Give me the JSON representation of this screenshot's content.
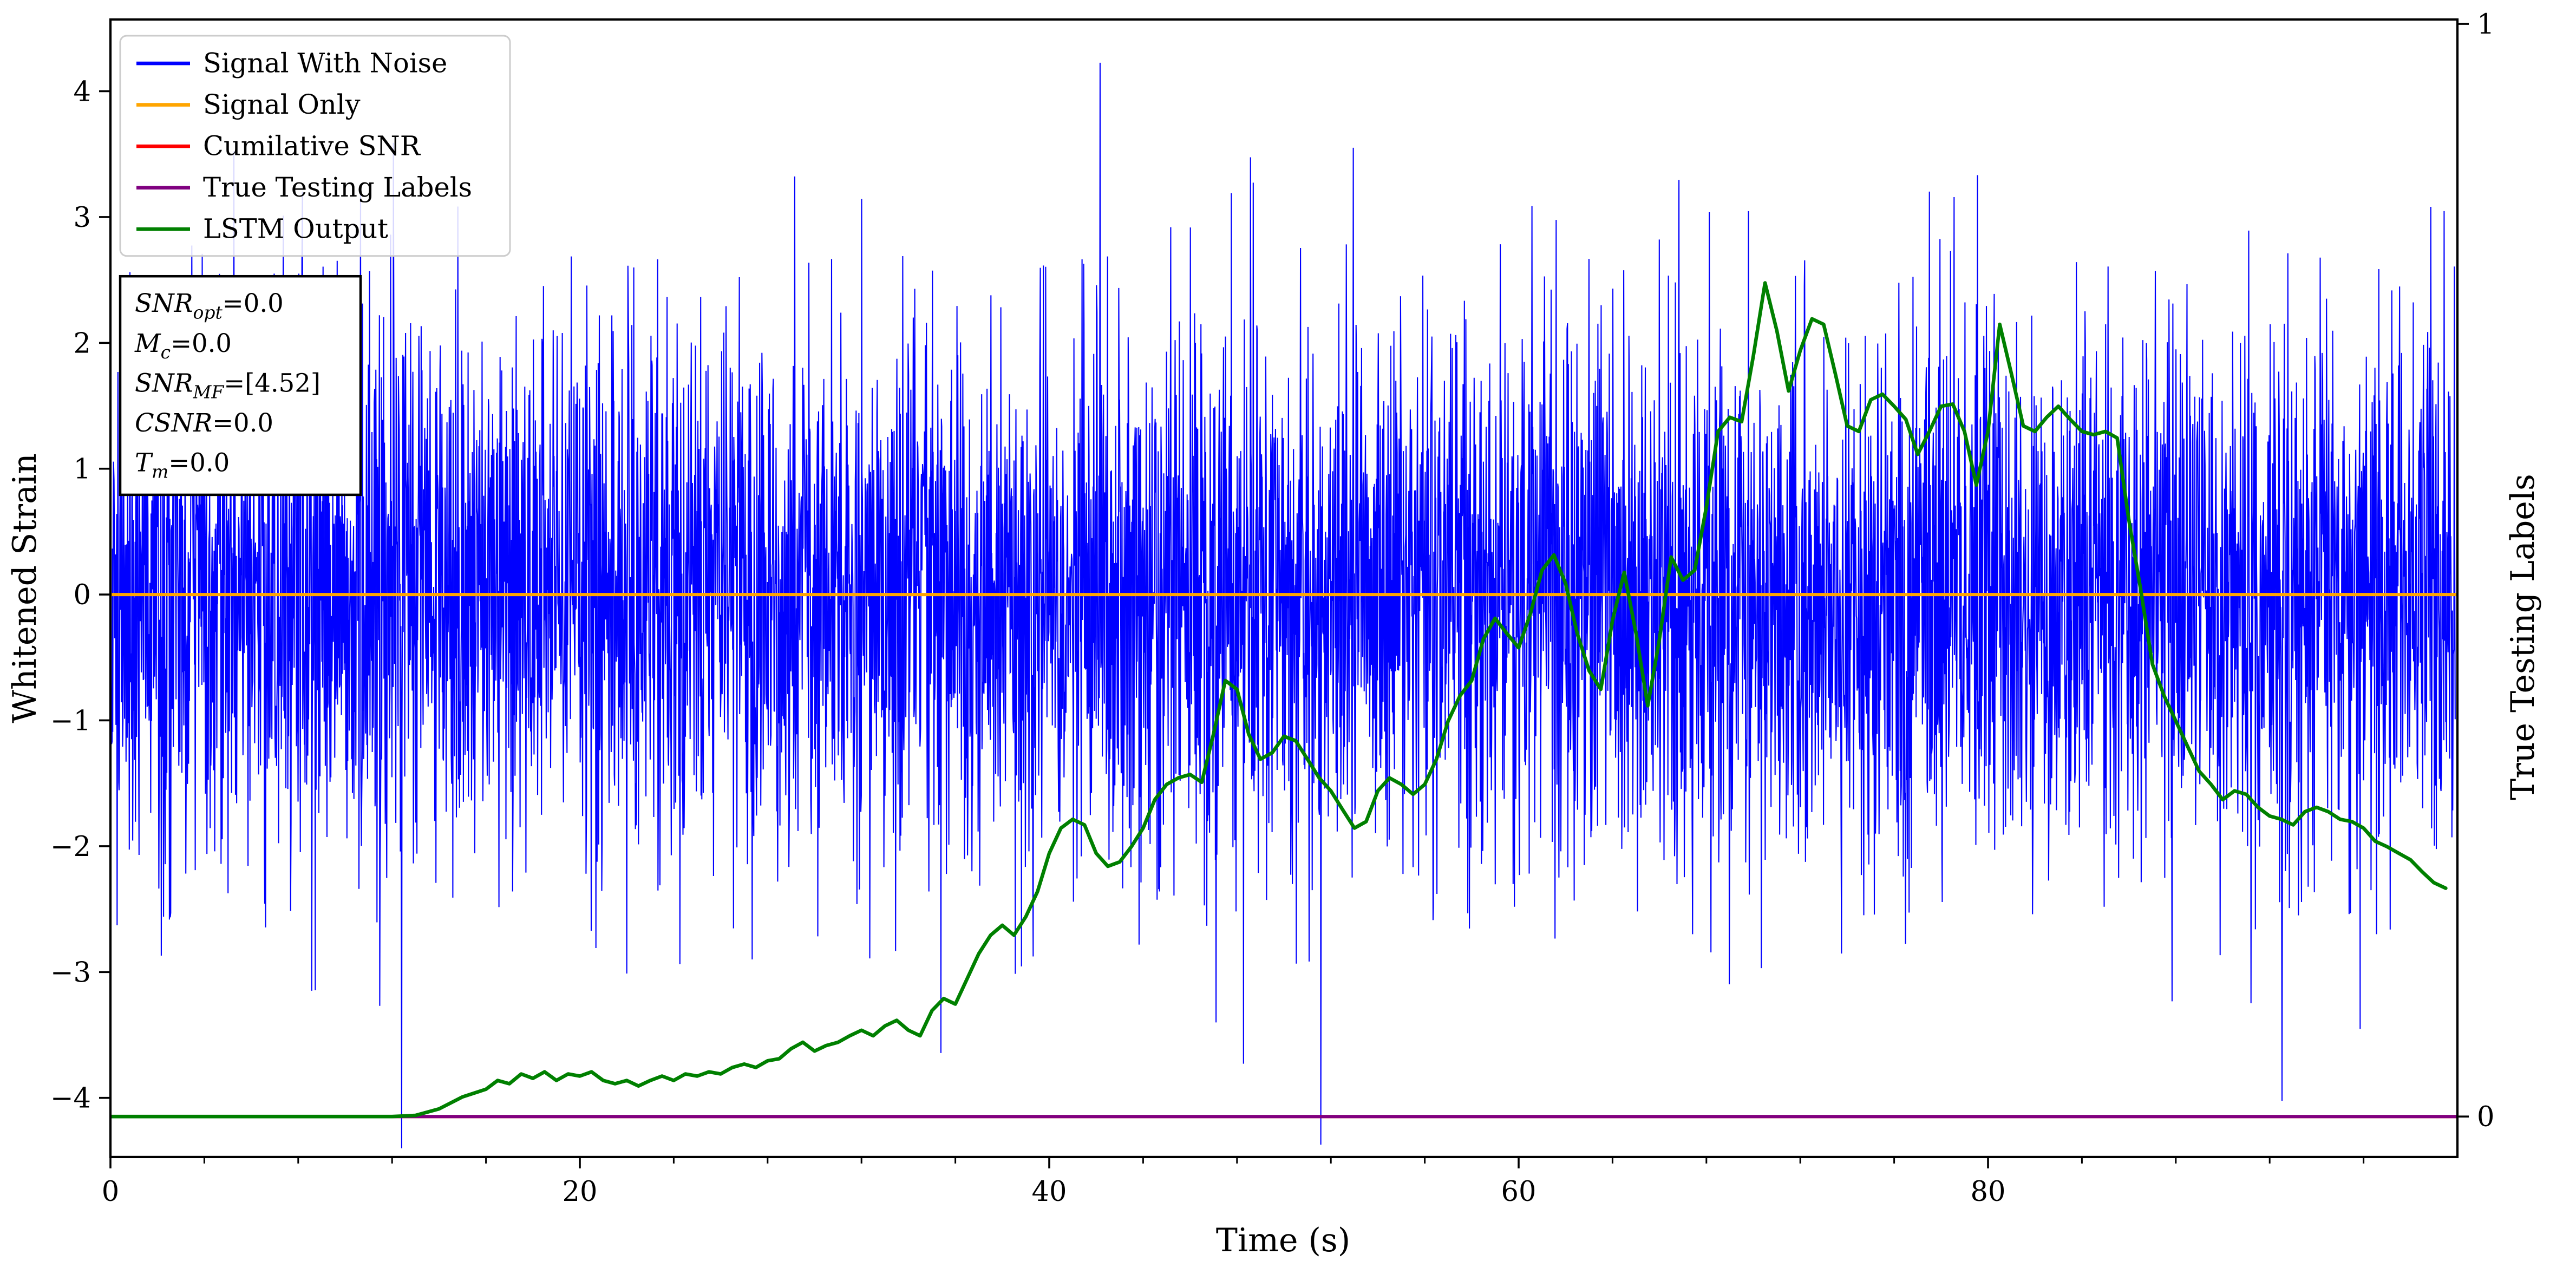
{
  "chart_data": {
    "type": "line",
    "title": "",
    "xlabel": "Time (s)",
    "ylabel_left": "Whitened Strain",
    "ylabel_right": "True Testing Labels",
    "xlim": [
      0,
      100
    ],
    "ylim_left": [
      -4.47,
      4.57
    ],
    "ylim_right": [
      -0.037,
      1.004
    ],
    "x_ticks": [
      0,
      20,
      40,
      60,
      80
    ],
    "x_minor_step": 4,
    "y_ticks_left": [
      -4,
      -3,
      -2,
      -1,
      0,
      1,
      2,
      3,
      4
    ],
    "y_ticks_right": [
      0,
      1
    ],
    "grid": false,
    "legend_position": "upper-left",
    "series": [
      {
        "name": "Signal With Noise",
        "color": "#0000ff",
        "type": "noise",
        "axis": "left",
        "noise_params": {
          "seed": 1337,
          "n": 6000,
          "mean": 0,
          "std": 1.1,
          "clip": 4.4,
          "x_start": 0,
          "x_end": 99.9
        }
      },
      {
        "name": "Signal Only",
        "color": "#ffa500",
        "type": "hline",
        "axis": "left",
        "y": 0
      },
      {
        "name": "Cumilative SNR",
        "color": "#ff0000",
        "type": "hline",
        "axis": "right",
        "y": 0
      },
      {
        "name": "True Testing Labels",
        "color": "#800080",
        "type": "hline",
        "axis": "right",
        "y": 0
      },
      {
        "name": "LSTM Output",
        "color": "#008000",
        "type": "line",
        "axis": "right",
        "points": [
          [
            0,
            0.0
          ],
          [
            5,
            0.0
          ],
          [
            10,
            0.0
          ],
          [
            12,
            0.0
          ],
          [
            13,
            0.001
          ],
          [
            14,
            0.007
          ],
          [
            15,
            0.018
          ],
          [
            16,
            0.025
          ],
          [
            16.5,
            0.033
          ],
          [
            17,
            0.03
          ],
          [
            17.5,
            0.039
          ],
          [
            18,
            0.035
          ],
          [
            18.5,
            0.041
          ],
          [
            19,
            0.033
          ],
          [
            19.5,
            0.039
          ],
          [
            20,
            0.037
          ],
          [
            20.5,
            0.041
          ],
          [
            21,
            0.033
          ],
          [
            21.5,
            0.03
          ],
          [
            22,
            0.033
          ],
          [
            22.5,
            0.028
          ],
          [
            23,
            0.033
          ],
          [
            23.5,
            0.037
          ],
          [
            24,
            0.033
          ],
          [
            24.5,
            0.039
          ],
          [
            25,
            0.037
          ],
          [
            25.5,
            0.041
          ],
          [
            26,
            0.039
          ],
          [
            26.5,
            0.045
          ],
          [
            27,
            0.048
          ],
          [
            27.5,
            0.045
          ],
          [
            28,
            0.051
          ],
          [
            28.5,
            0.053
          ],
          [
            29,
            0.062
          ],
          [
            29.5,
            0.068
          ],
          [
            30,
            0.06
          ],
          [
            30.5,
            0.065
          ],
          [
            31,
            0.068
          ],
          [
            31.5,
            0.074
          ],
          [
            32,
            0.079
          ],
          [
            32.5,
            0.074
          ],
          [
            33,
            0.083
          ],
          [
            33.5,
            0.088
          ],
          [
            34,
            0.079
          ],
          [
            34.5,
            0.074
          ],
          [
            35,
            0.097
          ],
          [
            35.5,
            0.108
          ],
          [
            36,
            0.103
          ],
          [
            36.5,
            0.126
          ],
          [
            37,
            0.149
          ],
          [
            37.5,
            0.166
          ],
          [
            38,
            0.175
          ],
          [
            38.5,
            0.166
          ],
          [
            39,
            0.183
          ],
          [
            39.5,
            0.206
          ],
          [
            40,
            0.241
          ],
          [
            40.5,
            0.264
          ],
          [
            41,
            0.272
          ],
          [
            41.5,
            0.267
          ],
          [
            42,
            0.241
          ],
          [
            42.5,
            0.229
          ],
          [
            43,
            0.233
          ],
          [
            43.5,
            0.247
          ],
          [
            44,
            0.264
          ],
          [
            44.5,
            0.29
          ],
          [
            45,
            0.304
          ],
          [
            45.5,
            0.31
          ],
          [
            46,
            0.313
          ],
          [
            46.5,
            0.306
          ],
          [
            47,
            0.35
          ],
          [
            47.5,
            0.399
          ],
          [
            48,
            0.391
          ],
          [
            48.5,
            0.35
          ],
          [
            49,
            0.327
          ],
          [
            49.5,
            0.333
          ],
          [
            50,
            0.348
          ],
          [
            50.5,
            0.344
          ],
          [
            51,
            0.327
          ],
          [
            51.5,
            0.31
          ],
          [
            52,
            0.298
          ],
          [
            52.5,
            0.281
          ],
          [
            53,
            0.264
          ],
          [
            53.5,
            0.27
          ],
          [
            54,
            0.298
          ],
          [
            54.5,
            0.31
          ],
          [
            55,
            0.304
          ],
          [
            55.5,
            0.295
          ],
          [
            56,
            0.304
          ],
          [
            56.5,
            0.327
          ],
          [
            57,
            0.362
          ],
          [
            57.5,
            0.385
          ],
          [
            58,
            0.399
          ],
          [
            58.5,
            0.437
          ],
          [
            59,
            0.456
          ],
          [
            59.5,
            0.442
          ],
          [
            60,
            0.429
          ],
          [
            60.5,
            0.46
          ],
          [
            61,
            0.5
          ],
          [
            61.5,
            0.514
          ],
          [
            62,
            0.488
          ],
          [
            62.5,
            0.442
          ],
          [
            63,
            0.408
          ],
          [
            63.5,
            0.391
          ],
          [
            64,
            0.454
          ],
          [
            64.5,
            0.498
          ],
          [
            65,
            0.442
          ],
          [
            65.5,
            0.376
          ],
          [
            66,
            0.437
          ],
          [
            66.5,
            0.512
          ],
          [
            67,
            0.491
          ],
          [
            67.5,
            0.5
          ],
          [
            68,
            0.558
          ],
          [
            68.5,
            0.627
          ],
          [
            69,
            0.64
          ],
          [
            69.5,
            0.636
          ],
          [
            70,
            0.696
          ],
          [
            70.5,
            0.763
          ],
          [
            71,
            0.719
          ],
          [
            71.5,
            0.664
          ],
          [
            72,
            0.701
          ],
          [
            72.5,
            0.73
          ],
          [
            73,
            0.725
          ],
          [
            73.5,
            0.679
          ],
          [
            74,
            0.632
          ],
          [
            74.5,
            0.627
          ],
          [
            75,
            0.656
          ],
          [
            75.5,
            0.661
          ],
          [
            76,
            0.65
          ],
          [
            76.5,
            0.638
          ],
          [
            77,
            0.606
          ],
          [
            77.5,
            0.627
          ],
          [
            78,
            0.65
          ],
          [
            78.5,
            0.652
          ],
          [
            79,
            0.627
          ],
          [
            79.5,
            0.578
          ],
          [
            80,
            0.627
          ],
          [
            80.5,
            0.725
          ],
          [
            81,
            0.679
          ],
          [
            81.5,
            0.632
          ],
          [
            82,
            0.627
          ],
          [
            82.5,
            0.64
          ],
          [
            83,
            0.65
          ],
          [
            83.5,
            0.638
          ],
          [
            84,
            0.627
          ],
          [
            84.5,
            0.624
          ],
          [
            85,
            0.627
          ],
          [
            85.5,
            0.621
          ],
          [
            86,
            0.546
          ],
          [
            86.5,
            0.483
          ],
          [
            87,
            0.414
          ],
          [
            87.5,
            0.385
          ],
          [
            88,
            0.362
          ],
          [
            88.5,
            0.339
          ],
          [
            89,
            0.316
          ],
          [
            89.5,
            0.304
          ],
          [
            90,
            0.29
          ],
          [
            90.5,
            0.298
          ],
          [
            91,
            0.295
          ],
          [
            91.5,
            0.283
          ],
          [
            92,
            0.275
          ],
          [
            92.5,
            0.272
          ],
          [
            93,
            0.267
          ],
          [
            93.5,
            0.279
          ],
          [
            94,
            0.283
          ],
          [
            94.5,
            0.279
          ],
          [
            95,
            0.272
          ],
          [
            95.5,
            0.27
          ],
          [
            96,
            0.264
          ],
          [
            96.5,
            0.252
          ],
          [
            97,
            0.247
          ],
          [
            97.5,
            0.241
          ],
          [
            98,
            0.235
          ],
          [
            98.5,
            0.224
          ],
          [
            99,
            0.214
          ],
          [
            99.5,
            0.209
          ]
        ]
      }
    ],
    "annotation": {
      "lines": [
        {
          "base": "SNR",
          "sub": "opt",
          "value": "=0.0"
        },
        {
          "base": "M",
          "sub": "c",
          "value": "=0.0"
        },
        {
          "base": "SNR",
          "sub": "MF",
          "value": "=[4.52]"
        },
        {
          "base": "CSNR",
          "sub": "",
          "value": "=0.0"
        },
        {
          "base": "T",
          "sub": "m",
          "value": "=0.0"
        }
      ]
    },
    "style": {
      "background": "#ffffff",
      "axis_color": "#000000",
      "legend_border": "#cccccc",
      "legend_background": "#ffffff",
      "annotation_border": "#000000",
      "annotation_background": "#ffffff"
    }
  }
}
